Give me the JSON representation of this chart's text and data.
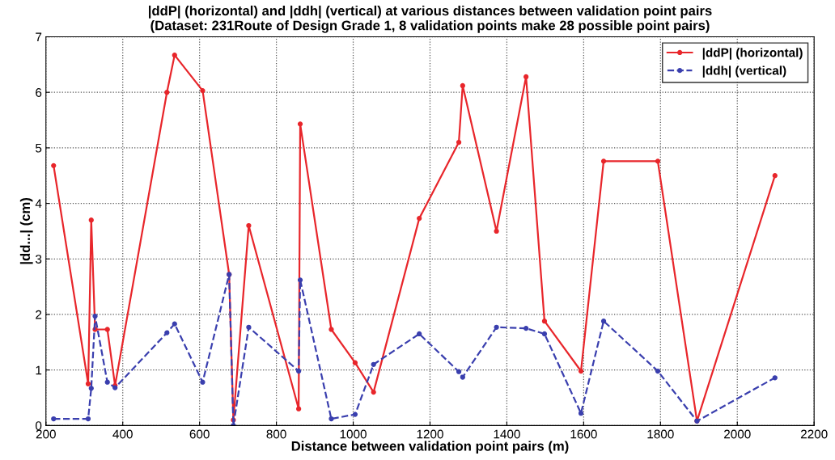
{
  "chart_data": {
    "type": "line",
    "title": "|ddP| (horizontal) and |ddh| (vertical) at various distances between validation point pairs\n(Dataset: 231Route of Design Grade 1, 8 validation points make 28 possible point pairs)",
    "xlabel": "Distance between validation point pairs (m)",
    "ylabel": "|dd...| (cm)",
    "x": [
      220,
      310,
      318,
      328,
      360,
      380,
      515,
      535,
      608,
      677,
      688,
      728,
      858,
      862,
      943,
      1005,
      1053,
      1172,
      1275,
      1285,
      1373,
      1450,
      1498,
      1593,
      1652,
      1793,
      1895,
      2098
    ],
    "series": [
      {
        "name": "|ddP| (horizontal)",
        "color": "#e8262b",
        "line_style": "solid",
        "values": [
          4.68,
          0.75,
          3.7,
          1.73,
          1.73,
          0.72,
          6.0,
          6.67,
          6.03,
          2.72,
          0.1,
          3.6,
          0.3,
          5.43,
          1.73,
          1.13,
          0.6,
          3.73,
          5.1,
          6.12,
          3.5,
          6.28,
          1.88,
          0.98,
          4.76,
          4.76,
          0.08,
          4.5
        ]
      },
      {
        "name": "|ddh| (vertical)",
        "color": "#3a3fae",
        "line_style": "dashed",
        "values": [
          0.12,
          0.12,
          0.67,
          1.97,
          0.78,
          0.68,
          1.67,
          1.83,
          0.78,
          2.72,
          0.0,
          1.77,
          0.98,
          2.62,
          0.12,
          0.2,
          1.1,
          1.65,
          0.97,
          0.87,
          1.77,
          1.75,
          1.65,
          0.22,
          1.88,
          0.98,
          0.08,
          0.86
        ]
      }
    ],
    "xlim": [
      200,
      2200
    ],
    "xticks": [
      200,
      400,
      600,
      800,
      1000,
      1200,
      1400,
      1600,
      1800,
      2000,
      2200
    ],
    "ylim": [
      0,
      7
    ],
    "yticks": [
      0,
      1,
      2,
      3,
      4,
      5,
      6,
      7
    ],
    "grid": true,
    "legend": "top right",
    "marker": "circle"
  }
}
